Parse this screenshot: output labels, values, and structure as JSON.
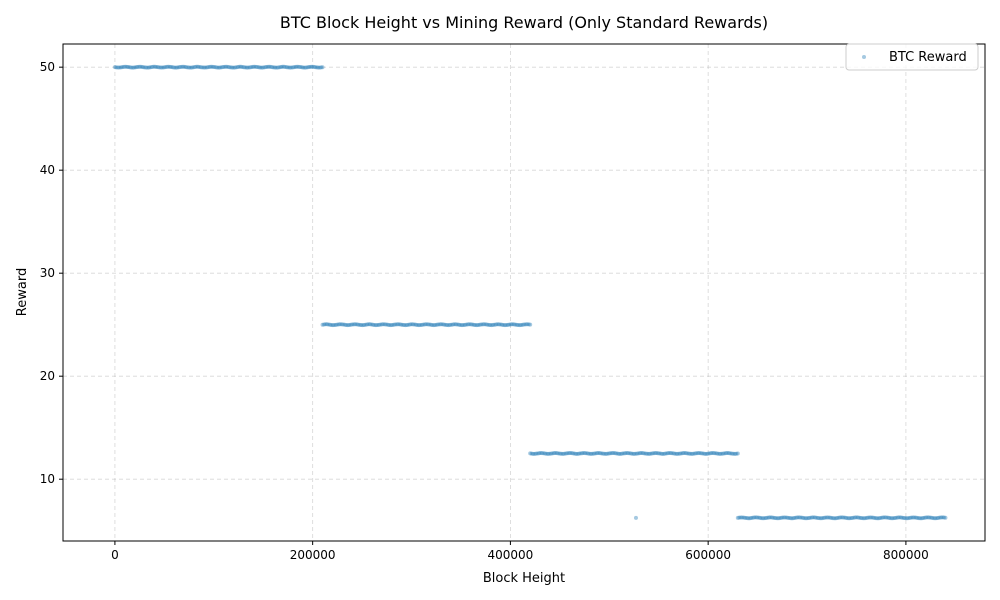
{
  "chart_data": {
    "type": "scatter",
    "title": "BTC Block Height vs Mining Reward (Only Standard Rewards)",
    "xlabel": "Block Height",
    "ylabel": "Reward",
    "xlim": [
      -52500,
      880000
    ],
    "ylim": [
      4.0,
      52.25
    ],
    "xticks": [
      0,
      200000,
      400000,
      600000,
      800000
    ],
    "xtick_labels": [
      "0",
      "200000",
      "400000",
      "600000",
      "800000"
    ],
    "yticks": [
      10,
      20,
      30,
      40,
      50
    ],
    "ytick_labels": [
      "10",
      "20",
      "30",
      "40",
      "50"
    ],
    "grid": true,
    "legend_position": "top-right",
    "marker_color": "#1f77b4",
    "series": [
      {
        "name": "BTC Reward",
        "segments": [
          {
            "reward": 50,
            "x_start": 0,
            "x_end": 210000
          },
          {
            "reward": 25,
            "x_start": 210000,
            "x_end": 420000
          },
          {
            "reward": 12.5,
            "x_start": 420000,
            "x_end": 630000
          },
          {
            "reward": 6.25,
            "x_start": 630000,
            "x_end": 840000
          }
        ],
        "outliers": [
          {
            "x": 527000,
            "y": 6.25
          }
        ]
      }
    ]
  }
}
